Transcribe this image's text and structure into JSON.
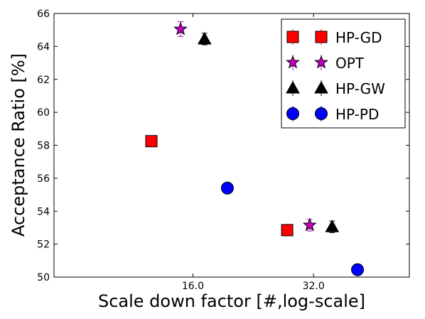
{
  "chart_data": {
    "type": "scatter",
    "xlabel": "Scale down factor [#,log-scale]",
    "ylabel": "Acceptance Ratio [%]",
    "xscale": "log",
    "xlim": [
      7.2,
      55.5
    ],
    "ylim": [
      50,
      66
    ],
    "xticks": [
      {
        "value": 16,
        "label": "16.0"
      },
      {
        "value": 32,
        "label": "32.0"
      }
    ],
    "yticks": [
      {
        "value": 50,
        "label": "50"
      },
      {
        "value": 52,
        "label": "52"
      },
      {
        "value": 54,
        "label": "54"
      },
      {
        "value": 56,
        "label": "56"
      },
      {
        "value": 58,
        "label": "58"
      },
      {
        "value": 60,
        "label": "60"
      },
      {
        "value": 62,
        "label": "62"
      },
      {
        "value": 64,
        "label": "64"
      },
      {
        "value": 66,
        "label": "66"
      }
    ],
    "grid": false,
    "legend_position": "top-right",
    "series": [
      {
        "name": "HP-GD",
        "marker": "square",
        "color": "#ff0000",
        "errorbar_color": "#ff0000",
        "points": [
          {
            "x": 12.6,
            "y": 58.25,
            "err": 0.1
          },
          {
            "x": 27.5,
            "y": 52.85,
            "err": 0.15
          }
        ]
      },
      {
        "name": "OPT",
        "marker": "star",
        "color": "#bf00bf",
        "errorbar_color": "#bf00bf",
        "points": [
          {
            "x": 14.9,
            "y": 65.05,
            "err": 0.45
          },
          {
            "x": 31.3,
            "y": 53.15,
            "err": 0.35
          }
        ]
      },
      {
        "name": "HP-GW",
        "marker": "triangle",
        "color": "#000000",
        "errorbar_color": "#000000",
        "points": [
          {
            "x": 17.1,
            "y": 64.45,
            "err": 0.35
          },
          {
            "x": 35.6,
            "y": 53.05,
            "err": 0.35
          }
        ]
      },
      {
        "name": "HP-PD",
        "marker": "circle",
        "color": "#0000ff",
        "errorbar_color": "#0000ff",
        "points": [
          {
            "x": 19.5,
            "y": 55.4,
            "err": 0.1
          },
          {
            "x": 41.2,
            "y": 50.45,
            "err": 0.3
          }
        ]
      }
    ]
  }
}
